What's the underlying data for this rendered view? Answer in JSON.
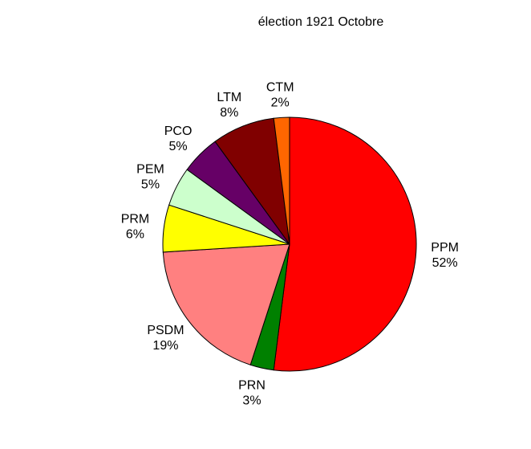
{
  "chart_data": {
    "type": "pie",
    "title": "élection 1921 Octobre",
    "direction": "clockwise",
    "start_angle_deg": 90,
    "slices": [
      {
        "name": "PPM",
        "value": 52,
        "percent_label": "52%",
        "color": "#ff0000"
      },
      {
        "name": "PRN",
        "value": 3,
        "percent_label": "3%",
        "color": "#008000"
      },
      {
        "name": "PSDM",
        "value": 19,
        "percent_label": "19%",
        "color": "#ff8080"
      },
      {
        "name": "PRM",
        "value": 6,
        "percent_label": "6%",
        "color": "#ffff00"
      },
      {
        "name": "PEM",
        "value": 5,
        "percent_label": "5%",
        "color": "#ccffcc"
      },
      {
        "name": "PCO",
        "value": 5,
        "percent_label": "5%",
        "color": "#660066"
      },
      {
        "name": "LTM",
        "value": 8,
        "percent_label": "8%",
        "color": "#800000"
      },
      {
        "name": "CTM",
        "value": 2,
        "percent_label": "2%",
        "color": "#ff6600"
      }
    ]
  }
}
